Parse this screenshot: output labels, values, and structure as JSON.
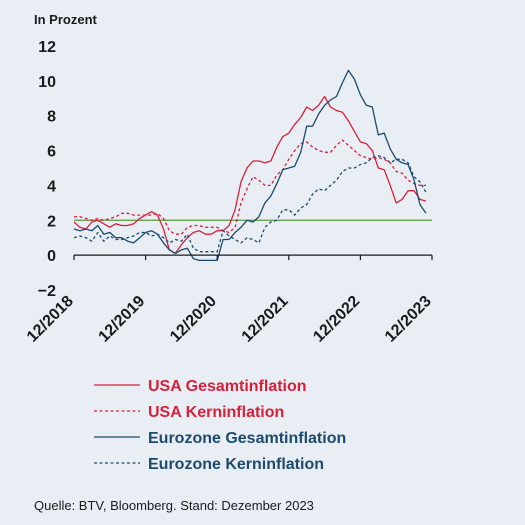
{
  "chart_data": {
    "type": "line",
    "ylabel": "In Prozent",
    "ylim": [
      -2,
      12
    ],
    "yticks": [
      -2,
      0,
      2,
      4,
      6,
      8,
      10,
      12
    ],
    "xlim": [
      2018.917,
      2023.917
    ],
    "xtick_values": [
      2018.917,
      2019.917,
      2020.917,
      2021.917,
      2022.917,
      2023.917
    ],
    "xtick_labels": [
      "12/2018",
      "12/2019",
      "12/2020",
      "12/2021",
      "12/2022",
      "12/2023"
    ],
    "reference_line": {
      "y": 2,
      "color": "#5a9a3c"
    },
    "legend_position": "bottom",
    "series": [
      {
        "name": "USA Gesamtinflation",
        "color": "#d9203a",
        "dash": "solid",
        "points": [
          [
            2018.917,
            1.9
          ],
          [
            2019.0,
            1.6
          ],
          [
            2019.083,
            1.5
          ],
          [
            2019.167,
            1.9
          ],
          [
            2019.25,
            2.0
          ],
          [
            2019.333,
            1.8
          ],
          [
            2019.417,
            1.6
          ],
          [
            2019.5,
            1.8
          ],
          [
            2019.583,
            1.7
          ],
          [
            2019.667,
            1.7
          ],
          [
            2019.75,
            1.8
          ],
          [
            2019.833,
            2.1
          ],
          [
            2019.917,
            2.3
          ],
          [
            2020.0,
            2.5
          ],
          [
            2020.083,
            2.3
          ],
          [
            2020.167,
            1.5
          ],
          [
            2020.25,
            0.3
          ],
          [
            2020.333,
            0.1
          ],
          [
            2020.417,
            0.6
          ],
          [
            2020.5,
            1.0
          ],
          [
            2020.583,
            1.3
          ],
          [
            2020.667,
            1.4
          ],
          [
            2020.75,
            1.2
          ],
          [
            2020.833,
            1.2
          ],
          [
            2020.917,
            1.4
          ],
          [
            2021.0,
            1.4
          ],
          [
            2021.083,
            1.7
          ],
          [
            2021.167,
            2.6
          ],
          [
            2021.25,
            4.2
          ],
          [
            2021.333,
            5.0
          ],
          [
            2021.417,
            5.4
          ],
          [
            2021.5,
            5.4
          ],
          [
            2021.583,
            5.3
          ],
          [
            2021.667,
            5.4
          ],
          [
            2021.75,
            6.2
          ],
          [
            2021.833,
            6.8
          ],
          [
            2021.917,
            7.0
          ],
          [
            2022.0,
            7.5
          ],
          [
            2022.083,
            7.9
          ],
          [
            2022.167,
            8.5
          ],
          [
            2022.25,
            8.3
          ],
          [
            2022.333,
            8.6
          ],
          [
            2022.417,
            9.1
          ],
          [
            2022.5,
            8.5
          ],
          [
            2022.583,
            8.3
          ],
          [
            2022.667,
            8.2
          ],
          [
            2022.75,
            7.7
          ],
          [
            2022.833,
            7.1
          ],
          [
            2022.917,
            6.5
          ],
          [
            2023.0,
            6.4
          ],
          [
            2023.083,
            6.0
          ],
          [
            2023.167,
            5.0
          ],
          [
            2023.25,
            4.9
          ],
          [
            2023.333,
            4.0
          ],
          [
            2023.417,
            3.0
          ],
          [
            2023.5,
            3.2
          ],
          [
            2023.583,
            3.7
          ],
          [
            2023.667,
            3.7
          ],
          [
            2023.75,
            3.2
          ],
          [
            2023.833,
            3.1
          ]
        ]
      },
      {
        "name": "USA Kerninflation",
        "color": "#d9203a",
        "dash": "dashed",
        "points": [
          [
            2018.917,
            2.2
          ],
          [
            2019.0,
            2.2
          ],
          [
            2019.083,
            2.1
          ],
          [
            2019.167,
            2.0
          ],
          [
            2019.25,
            2.1
          ],
          [
            2019.333,
            2.0
          ],
          [
            2019.417,
            2.1
          ],
          [
            2019.5,
            2.2
          ],
          [
            2019.583,
            2.4
          ],
          [
            2019.667,
            2.4
          ],
          [
            2019.75,
            2.3
          ],
          [
            2019.833,
            2.3
          ],
          [
            2019.917,
            2.3
          ],
          [
            2020.0,
            2.3
          ],
          [
            2020.083,
            2.4
          ],
          [
            2020.167,
            2.1
          ],
          [
            2020.25,
            1.4
          ],
          [
            2020.333,
            1.2
          ],
          [
            2020.417,
            1.2
          ],
          [
            2020.5,
            1.6
          ],
          [
            2020.583,
            1.7
          ],
          [
            2020.667,
            1.7
          ],
          [
            2020.75,
            1.6
          ],
          [
            2020.833,
            1.6
          ],
          [
            2020.917,
            1.6
          ],
          [
            2021.0,
            1.4
          ],
          [
            2021.083,
            1.3
          ],
          [
            2021.167,
            1.6
          ],
          [
            2021.25,
            3.0
          ],
          [
            2021.333,
            3.8
          ],
          [
            2021.417,
            4.5
          ],
          [
            2021.5,
            4.3
          ],
          [
            2021.583,
            4.0
          ],
          [
            2021.667,
            4.0
          ],
          [
            2021.75,
            4.6
          ],
          [
            2021.833,
            4.9
          ],
          [
            2021.917,
            5.5
          ],
          [
            2022.0,
            6.0
          ],
          [
            2022.083,
            6.4
          ],
          [
            2022.167,
            6.5
          ],
          [
            2022.25,
            6.2
          ],
          [
            2022.333,
            6.0
          ],
          [
            2022.417,
            5.9
          ],
          [
            2022.5,
            5.9
          ],
          [
            2022.583,
            6.3
          ],
          [
            2022.667,
            6.6
          ],
          [
            2022.75,
            6.3
          ],
          [
            2022.833,
            6.0
          ],
          [
            2022.917,
            5.7
          ],
          [
            2023.0,
            5.6
          ],
          [
            2023.083,
            5.5
          ],
          [
            2023.167,
            5.6
          ],
          [
            2023.25,
            5.5
          ],
          [
            2023.333,
            5.3
          ],
          [
            2023.417,
            4.8
          ],
          [
            2023.5,
            4.7
          ],
          [
            2023.583,
            4.3
          ],
          [
            2023.667,
            4.1
          ],
          [
            2023.75,
            4.0
          ],
          [
            2023.833,
            4.0
          ]
        ]
      },
      {
        "name": "Eurozone Gesamtinflation",
        "color": "#1c4a6e",
        "dash": "solid",
        "points": [
          [
            2018.917,
            1.5
          ],
          [
            2019.0,
            1.4
          ],
          [
            2019.083,
            1.5
          ],
          [
            2019.167,
            1.4
          ],
          [
            2019.25,
            1.7
          ],
          [
            2019.333,
            1.2
          ],
          [
            2019.417,
            1.3
          ],
          [
            2019.5,
            1.0
          ],
          [
            2019.583,
            1.0
          ],
          [
            2019.667,
            0.8
          ],
          [
            2019.75,
            0.7
          ],
          [
            2019.833,
            1.0
          ],
          [
            2019.917,
            1.3
          ],
          [
            2020.0,
            1.4
          ],
          [
            2020.083,
            1.2
          ],
          [
            2020.167,
            0.7
          ],
          [
            2020.25,
            0.3
          ],
          [
            2020.333,
            0.1
          ],
          [
            2020.417,
            0.3
          ],
          [
            2020.5,
            0.4
          ],
          [
            2020.583,
            -0.2
          ],
          [
            2020.667,
            -0.3
          ],
          [
            2020.75,
            -0.3
          ],
          [
            2020.833,
            -0.3
          ],
          [
            2020.917,
            -0.3
          ],
          [
            2021.0,
            0.9
          ],
          [
            2021.083,
            0.9
          ],
          [
            2021.167,
            1.3
          ],
          [
            2021.25,
            1.6
          ],
          [
            2021.333,
            2.0
          ],
          [
            2021.417,
            1.9
          ],
          [
            2021.5,
            2.2
          ],
          [
            2021.583,
            3.0
          ],
          [
            2021.667,
            3.4
          ],
          [
            2021.75,
            4.1
          ],
          [
            2021.833,
            4.9
          ],
          [
            2021.917,
            5.0
          ],
          [
            2022.0,
            5.1
          ],
          [
            2022.083,
            5.9
          ],
          [
            2022.167,
            7.4
          ],
          [
            2022.25,
            7.4
          ],
          [
            2022.333,
            8.1
          ],
          [
            2022.417,
            8.6
          ],
          [
            2022.5,
            8.9
          ],
          [
            2022.583,
            9.1
          ],
          [
            2022.667,
            9.9
          ],
          [
            2022.75,
            10.6
          ],
          [
            2022.833,
            10.1
          ],
          [
            2022.917,
            9.2
          ],
          [
            2023.0,
            8.6
          ],
          [
            2023.083,
            8.5
          ],
          [
            2023.167,
            6.9
          ],
          [
            2023.25,
            7.0
          ],
          [
            2023.333,
            6.1
          ],
          [
            2023.417,
            5.5
          ],
          [
            2023.5,
            5.3
          ],
          [
            2023.583,
            5.2
          ],
          [
            2023.667,
            4.3
          ],
          [
            2023.75,
            2.9
          ],
          [
            2023.833,
            2.4
          ]
        ]
      },
      {
        "name": "Eurozone Kerninflation",
        "color": "#1c4a6e",
        "dash": "dashed",
        "points": [
          [
            2018.917,
            1.0
          ],
          [
            2019.0,
            1.1
          ],
          [
            2019.083,
            1.0
          ],
          [
            2019.167,
            0.8
          ],
          [
            2019.25,
            1.3
          ],
          [
            2019.333,
            0.8
          ],
          [
            2019.417,
            1.1
          ],
          [
            2019.5,
            0.9
          ],
          [
            2019.583,
            0.9
          ],
          [
            2019.667,
            1.0
          ],
          [
            2019.75,
            1.1
          ],
          [
            2019.833,
            1.3
          ],
          [
            2019.917,
            1.3
          ],
          [
            2020.0,
            1.1
          ],
          [
            2020.083,
            1.2
          ],
          [
            2020.167,
            1.0
          ],
          [
            2020.25,
            0.7
          ],
          [
            2020.333,
            0.9
          ],
          [
            2020.417,
            0.8
          ],
          [
            2020.5,
            1.2
          ],
          [
            2020.583,
            0.4
          ],
          [
            2020.667,
            0.2
          ],
          [
            2020.75,
            0.2
          ],
          [
            2020.833,
            0.2
          ],
          [
            2020.917,
            0.2
          ],
          [
            2021.0,
            1.4
          ],
          [
            2021.083,
            1.1
          ],
          [
            2021.167,
            0.9
          ],
          [
            2021.25,
            0.7
          ],
          [
            2021.333,
            1.0
          ],
          [
            2021.417,
            0.9
          ],
          [
            2021.5,
            0.7
          ],
          [
            2021.583,
            1.6
          ],
          [
            2021.667,
            1.9
          ],
          [
            2021.75,
            2.0
          ],
          [
            2021.833,
            2.6
          ],
          [
            2021.917,
            2.6
          ],
          [
            2022.0,
            2.3
          ],
          [
            2022.083,
            2.7
          ],
          [
            2022.167,
            2.9
          ],
          [
            2022.25,
            3.5
          ],
          [
            2022.333,
            3.8
          ],
          [
            2022.417,
            3.7
          ],
          [
            2022.5,
            4.0
          ],
          [
            2022.583,
            4.3
          ],
          [
            2022.667,
            4.8
          ],
          [
            2022.75,
            5.0
          ],
          [
            2022.833,
            5.0
          ],
          [
            2022.917,
            5.2
          ],
          [
            2023.0,
            5.3
          ],
          [
            2023.083,
            5.6
          ],
          [
            2023.167,
            5.7
          ],
          [
            2023.25,
            5.6
          ],
          [
            2023.333,
            5.3
          ],
          [
            2023.417,
            5.5
          ],
          [
            2023.5,
            5.5
          ],
          [
            2023.583,
            5.3
          ],
          [
            2023.667,
            4.5
          ],
          [
            2023.75,
            4.2
          ],
          [
            2023.833,
            3.6
          ]
        ]
      }
    ]
  },
  "source": "Quelle: BTV, Bloomberg. Stand: Dezember 2023"
}
